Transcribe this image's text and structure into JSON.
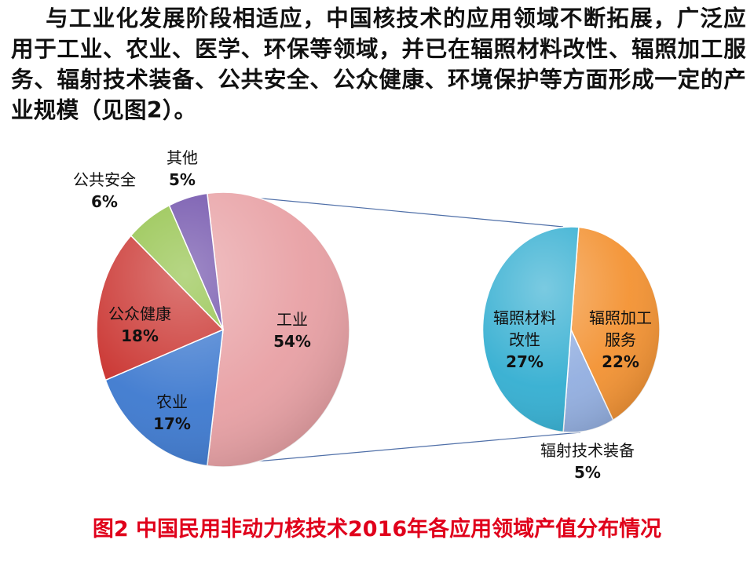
{
  "paragraph": "与工业化发展阶段相适应，中国核技术的应用领域不断拓展，广泛应用于工业、农业、医学、环保等领域，并已在辐照材料改性、辐照加工服务、辐射技术装备、公共安全、公众健康、环境保护等方面形成一定的产业规模（见图2）。",
  "caption": "图2 中国民用非动力核技术2016年各应用领域产值分布情况",
  "chart_data": [
    {
      "type": "pie",
      "title": "",
      "slices": [
        {
          "label": "工业",
          "value": 54,
          "value_label": "54%",
          "color": "#e8a0a4"
        },
        {
          "label": "农业",
          "value": 17,
          "value_label": "17%",
          "color": "#3d79cf"
        },
        {
          "label": "公众健康",
          "value": 18,
          "value_label": "18%",
          "color": "#c9302c"
        },
        {
          "label": "公共安全",
          "value": 6,
          "value_label": "6%",
          "color": "#8fc043"
        },
        {
          "label": "其他",
          "value": 5,
          "value_label": "5%",
          "color": "#6b4ba8"
        }
      ]
    },
    {
      "type": "pie",
      "title": "",
      "breakdown_of": "工业",
      "slices": [
        {
          "label": "辐照加工服务",
          "value": 22,
          "value_label": "22%",
          "color": "#f39232"
        },
        {
          "label": "辐射技术装备",
          "value": 5,
          "value_label": "5%",
          "color": "#92aee0"
        },
        {
          "label": "辐照材料改性",
          "value": 27,
          "value_label": "27%",
          "color": "#33aed1"
        }
      ]
    }
  ]
}
